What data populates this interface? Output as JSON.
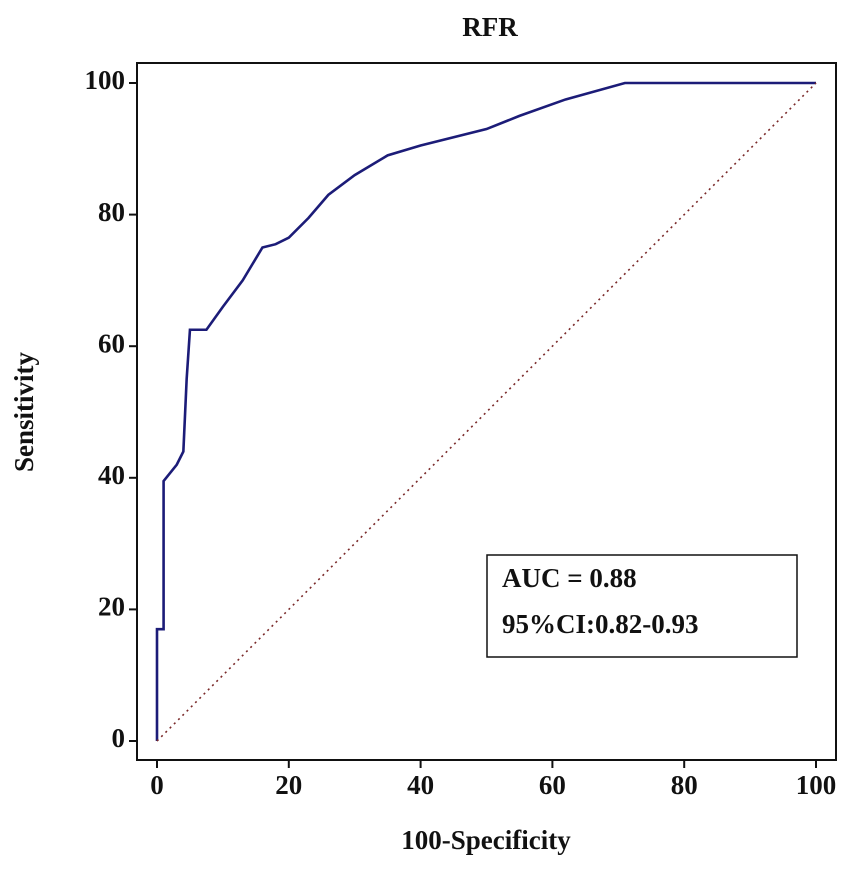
{
  "chart_data": {
    "type": "line",
    "title": "RFR",
    "xlabel": "100-Specificity",
    "ylabel": "Sensitivity",
    "series": [
      {
        "color": "#1c1c78",
        "style": "solid",
        "x": [
          0,
          0,
          1,
          1,
          3,
          4,
          4.5,
          5,
          7.5,
          10,
          13,
          16,
          18,
          20,
          23,
          26,
          30,
          35,
          40,
          50,
          55,
          62,
          71,
          100
        ],
        "values": [
          0,
          17,
          17,
          39.5,
          42,
          44,
          55,
          62.5,
          62.5,
          66,
          70,
          75,
          75.5,
          76.5,
          79.5,
          83,
          86,
          89,
          90.5,
          93,
          95,
          97.5,
          100,
          100
        ]
      },
      {
        "color": "#7a2a2a",
        "style": "dotted",
        "x": [
          0,
          100
        ],
        "values": [
          0,
          100
        ]
      }
    ],
    "annotations": [
      "AUC = 0.88",
      "95%CI:0.82-0.93"
    ],
    "xlim": [
      0,
      100
    ],
    "ylim": [
      0,
      100
    ],
    "xticks": [
      0,
      20,
      40,
      60,
      80,
      100
    ],
    "yticks": [
      0,
      20,
      40,
      60,
      80,
      100
    ],
    "grid": false
  }
}
